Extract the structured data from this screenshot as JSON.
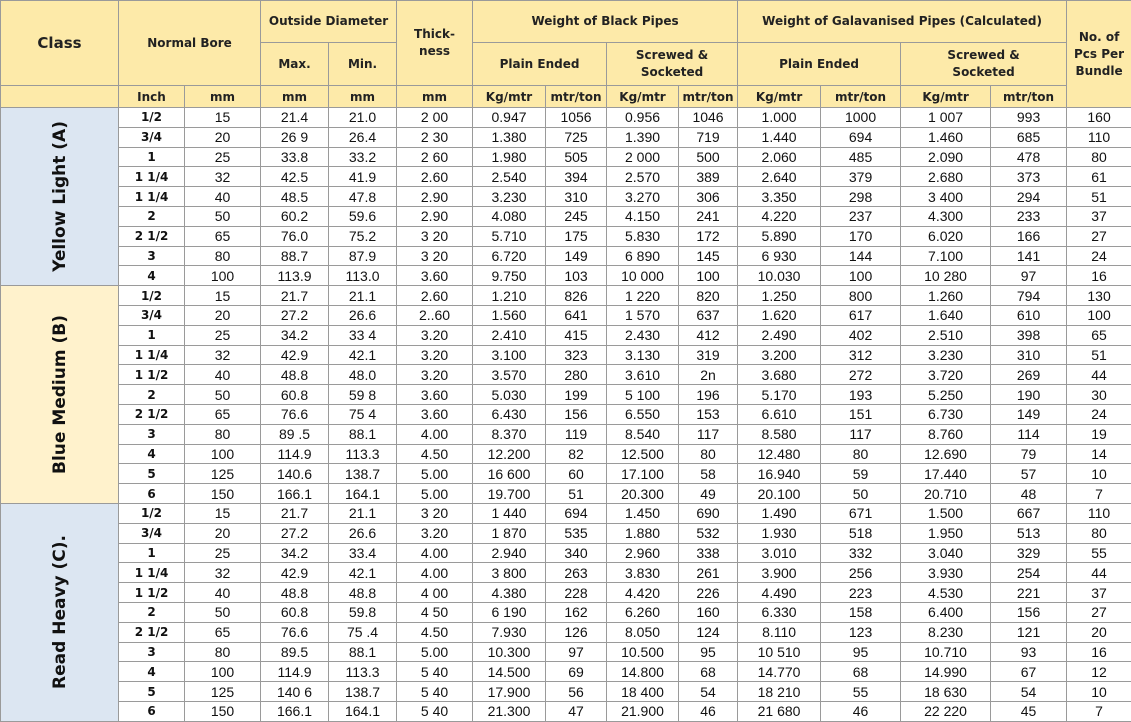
{
  "header": {
    "class": "Class",
    "normal_bore": "Normal Bore",
    "outside_diameter": "Outside Diameter",
    "thickness": "Thick-\nness",
    "black_pipes": "Weight of Black Pipes",
    "galvanised_pipes": "Weight of Galavanised Pipes (Calculated)",
    "pcs_per_bundle": "No. of Pcs Per Bundle",
    "max": "Max.",
    "min": "Min.",
    "plain_ended_black": "Plain Ended",
    "screwed_socketed_black": "Screwed &\nSocketed",
    "plain_ended_galv": "Plain Ended",
    "screwed_socketed_galv": "Screwed &\nSocketed",
    "units": [
      "Inch",
      "mm",
      "mm",
      "mm",
      "mm",
      "Kg/mtr",
      "mtr/ton",
      "Kg/mtr",
      "mtr/ton",
      "Kg/mtr",
      "mtr/ton",
      "Kg/mtr",
      "mtr/ton"
    ]
  },
  "groups": [
    {
      "label": "Yellow Light (A)",
      "rows": [
        [
          "1/2",
          "15",
          "21.4",
          "21.0",
          "2 00",
          "0.947",
          "1056",
          "0.956",
          "1046",
          "1.000",
          "1000",
          "1 007",
          "993",
          "160"
        ],
        [
          "3/4",
          "20",
          "26 9",
          "26.4",
          "2 30",
          "1.380",
          "725",
          "1.390",
          "719",
          "1.440",
          "694",
          "1.460",
          "685",
          "110"
        ],
        [
          "1",
          "25",
          "33.8",
          "33.2",
          "2 60",
          "1.980",
          "505",
          "2 000",
          "500",
          "2.060",
          "485",
          "2.090",
          "478",
          "80"
        ],
        [
          "1 1/4",
          "32",
          "42.5",
          "41.9",
          "2.60",
          "2.540",
          "394",
          "2.570",
          "389",
          "2.640",
          "379",
          "2.680",
          "373",
          "61"
        ],
        [
          "1 1/4",
          "40",
          "48.5",
          "47.8",
          "2.90",
          "3.230",
          "310",
          "3.270",
          "306",
          "3.350",
          "298",
          "3 400",
          "294",
          "51"
        ],
        [
          "2",
          "50",
          "60.2",
          "59.6",
          "2.90",
          "4.080",
          "245",
          "4.150",
          "241",
          "4.220",
          "237",
          "4.300",
          "233",
          "37"
        ],
        [
          "2 1/2",
          "65",
          "76.0",
          "75.2",
          "3 20",
          "5.710",
          "175",
          "5.830",
          "172",
          "5.890",
          "170",
          "6.020",
          "166",
          "27"
        ],
        [
          "3",
          "80",
          "88.7",
          "87.9",
          "3 20",
          "6.720",
          "149",
          "6 890",
          "145",
          "6 930",
          "144",
          "7.100",
          "141",
          "24"
        ],
        [
          "4",
          "100",
          "113.9",
          "113.0",
          "3.60",
          "9.750",
          "103",
          "10 000",
          "100",
          "10.030",
          "100",
          "10 280",
          "97",
          "16"
        ]
      ]
    },
    {
      "label": "Blue Medium (B)",
      "rows": [
        [
          "1/2",
          "15",
          "21.7",
          "21.1",
          "2.60",
          "1.210",
          "826",
          "1 220",
          "820",
          "1.250",
          "800",
          "1.260",
          "794",
          "130"
        ],
        [
          "3/4",
          "20",
          "27.2",
          "26.6",
          "2..60",
          "1.560",
          "641",
          "1 570",
          "637",
          "1.620",
          "617",
          "1.640",
          "610",
          "100"
        ],
        [
          "1",
          "25",
          "34.2",
          "33 4",
          "3.20",
          "2.410",
          "415",
          "2.430",
          "412",
          "2.490",
          "402",
          "2.510",
          "398",
          "65"
        ],
        [
          "1 1/4",
          "32",
          "42.9",
          "42.1",
          "3.20",
          "3.100",
          "323",
          "3.130",
          "319",
          "3.200",
          "312",
          "3.230",
          "310",
          "51"
        ],
        [
          "1 1/2",
          "40",
          "48.8",
          "48.0",
          "3.20",
          "3.570",
          "280",
          "3.610",
          "2n",
          "3.680",
          "272",
          "3.720",
          "269",
          "44"
        ],
        [
          "2",
          "50",
          "60.8",
          "59 8",
          "3.60",
          "5.030",
          "199",
          "5 100",
          "196",
          "5.170",
          "193",
          "5.250",
          "190",
          "30"
        ],
        [
          "2 1/2",
          "65",
          "76.6",
          "75 4",
          "3.60",
          "6.430",
          "156",
          "6.550",
          "153",
          "6.610",
          "151",
          "6.730",
          "149",
          "24"
        ],
        [
          "3",
          "80",
          "89 .5",
          "88.1",
          "4.00",
          "8.370",
          "119",
          "8.540",
          "117",
          "8.580",
          "117",
          "8.760",
          "114",
          "19"
        ],
        [
          "4",
          "100",
          "114.9",
          "113.3",
          "4.50",
          "12.200",
          "82",
          "12.500",
          "80",
          "12.480",
          "80",
          "12.690",
          "79",
          "14"
        ],
        [
          "5",
          "125",
          "140.6",
          "138.7",
          "5.00",
          "16 600",
          "60",
          "17.100",
          "58",
          "16.940",
          "59",
          "17.440",
          "57",
          "10"
        ],
        [
          "6",
          "150",
          "166.1",
          "164.1",
          "5.00",
          "19.700",
          "51",
          "20.300",
          "49",
          "20.100",
          "50",
          "20.710",
          "48",
          "7"
        ]
      ]
    },
    {
      "label": "Read Heavy (C).",
      "rows": [
        [
          "1/2",
          "15",
          "21.7",
          "21.1",
          "3 20",
          "1 440",
          "694",
          "1.450",
          "690",
          "1.490",
          "671",
          "1.500",
          "667",
          "110"
        ],
        [
          "3/4",
          "20",
          "27.2",
          "26.6",
          "3.20",
          "1 870",
          "535",
          "1.880",
          "532",
          "1.930",
          "518",
          "1.950",
          "513",
          "80"
        ],
        [
          "1",
          "25",
          "34.2",
          "33.4",
          "4.00",
          "2.940",
          "340",
          "2.960",
          "338",
          "3.010",
          "332",
          "3.040",
          "329",
          "55"
        ],
        [
          "1 1/4",
          "32",
          "42.9",
          "42.1",
          "4.00",
          "3 800",
          "263",
          "3.830",
          "261",
          "3.900",
          "256",
          "3.930",
          "254",
          "44"
        ],
        [
          "1 1/2",
          "40",
          "48.8",
          "48.8",
          "4 00",
          "4.380",
          "228",
          "4.420",
          "226",
          "4.490",
          "223",
          "4.530",
          "221",
          "37"
        ],
        [
          "2",
          "50",
          "60.8",
          "59.8",
          "4 50",
          "6 190",
          "162",
          "6.260",
          "160",
          "6.330",
          "158",
          "6.400",
          "156",
          "27"
        ],
        [
          "2 1/2",
          "65",
          "76.6",
          "75 .4",
          "4.50",
          "7.930",
          "126",
          "8.050",
          "124",
          "8.110",
          "123",
          "8.230",
          "121",
          "20"
        ],
        [
          "3",
          "80",
          "89.5",
          "88.1",
          "5.00",
          "10.300",
          "97",
          "10.500",
          "95",
          "10 510",
          "95",
          "10.710",
          "93",
          "16"
        ],
        [
          "4",
          "100",
          "114.9",
          "113.3",
          "5 40",
          "14.500",
          "69",
          "14.800",
          "68",
          "14.770",
          "68",
          "14.990",
          "67",
          "12"
        ],
        [
          "5",
          "125",
          "140 6",
          "138.7",
          "5 40",
          "17.900",
          "56",
          "18 400",
          "54",
          "18 210",
          "55",
          "18 630",
          "54",
          "10"
        ],
        [
          "6",
          "150",
          "166.1",
          "164.1",
          "5 40",
          "21.300",
          "47",
          "21.900",
          "46",
          "21 680",
          "46",
          "22 220",
          "45",
          "7"
        ]
      ]
    }
  ]
}
